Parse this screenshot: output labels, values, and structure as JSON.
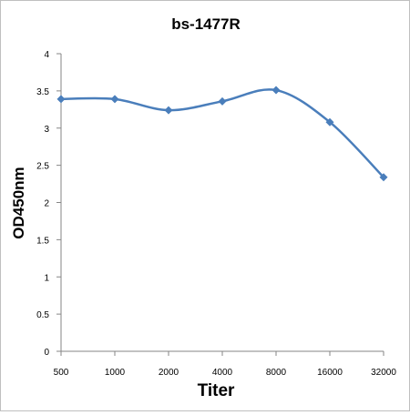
{
  "chart_data": {
    "type": "line",
    "title": "bs-1477R",
    "xlabel": "Titer",
    "ylabel": "OD450nm",
    "categories": [
      "500",
      "1000",
      "2000",
      "4000",
      "8000",
      "16000",
      "32000"
    ],
    "series": [
      {
        "values": [
          3.39,
          3.39,
          3.24,
          3.36,
          3.51,
          3.08,
          2.34
        ]
      }
    ],
    "ylim": [
      0,
      4
    ],
    "yticks": [
      "0",
      "0.5",
      "1",
      "1.5",
      "2",
      "2.5",
      "3",
      "3.5",
      "4"
    ],
    "grid": false,
    "legend": "none",
    "smooth": true,
    "colors": {
      "line": "#4a7ebb",
      "marker": "#4a7ebb",
      "axis": "#868686",
      "text": "#000000"
    }
  }
}
